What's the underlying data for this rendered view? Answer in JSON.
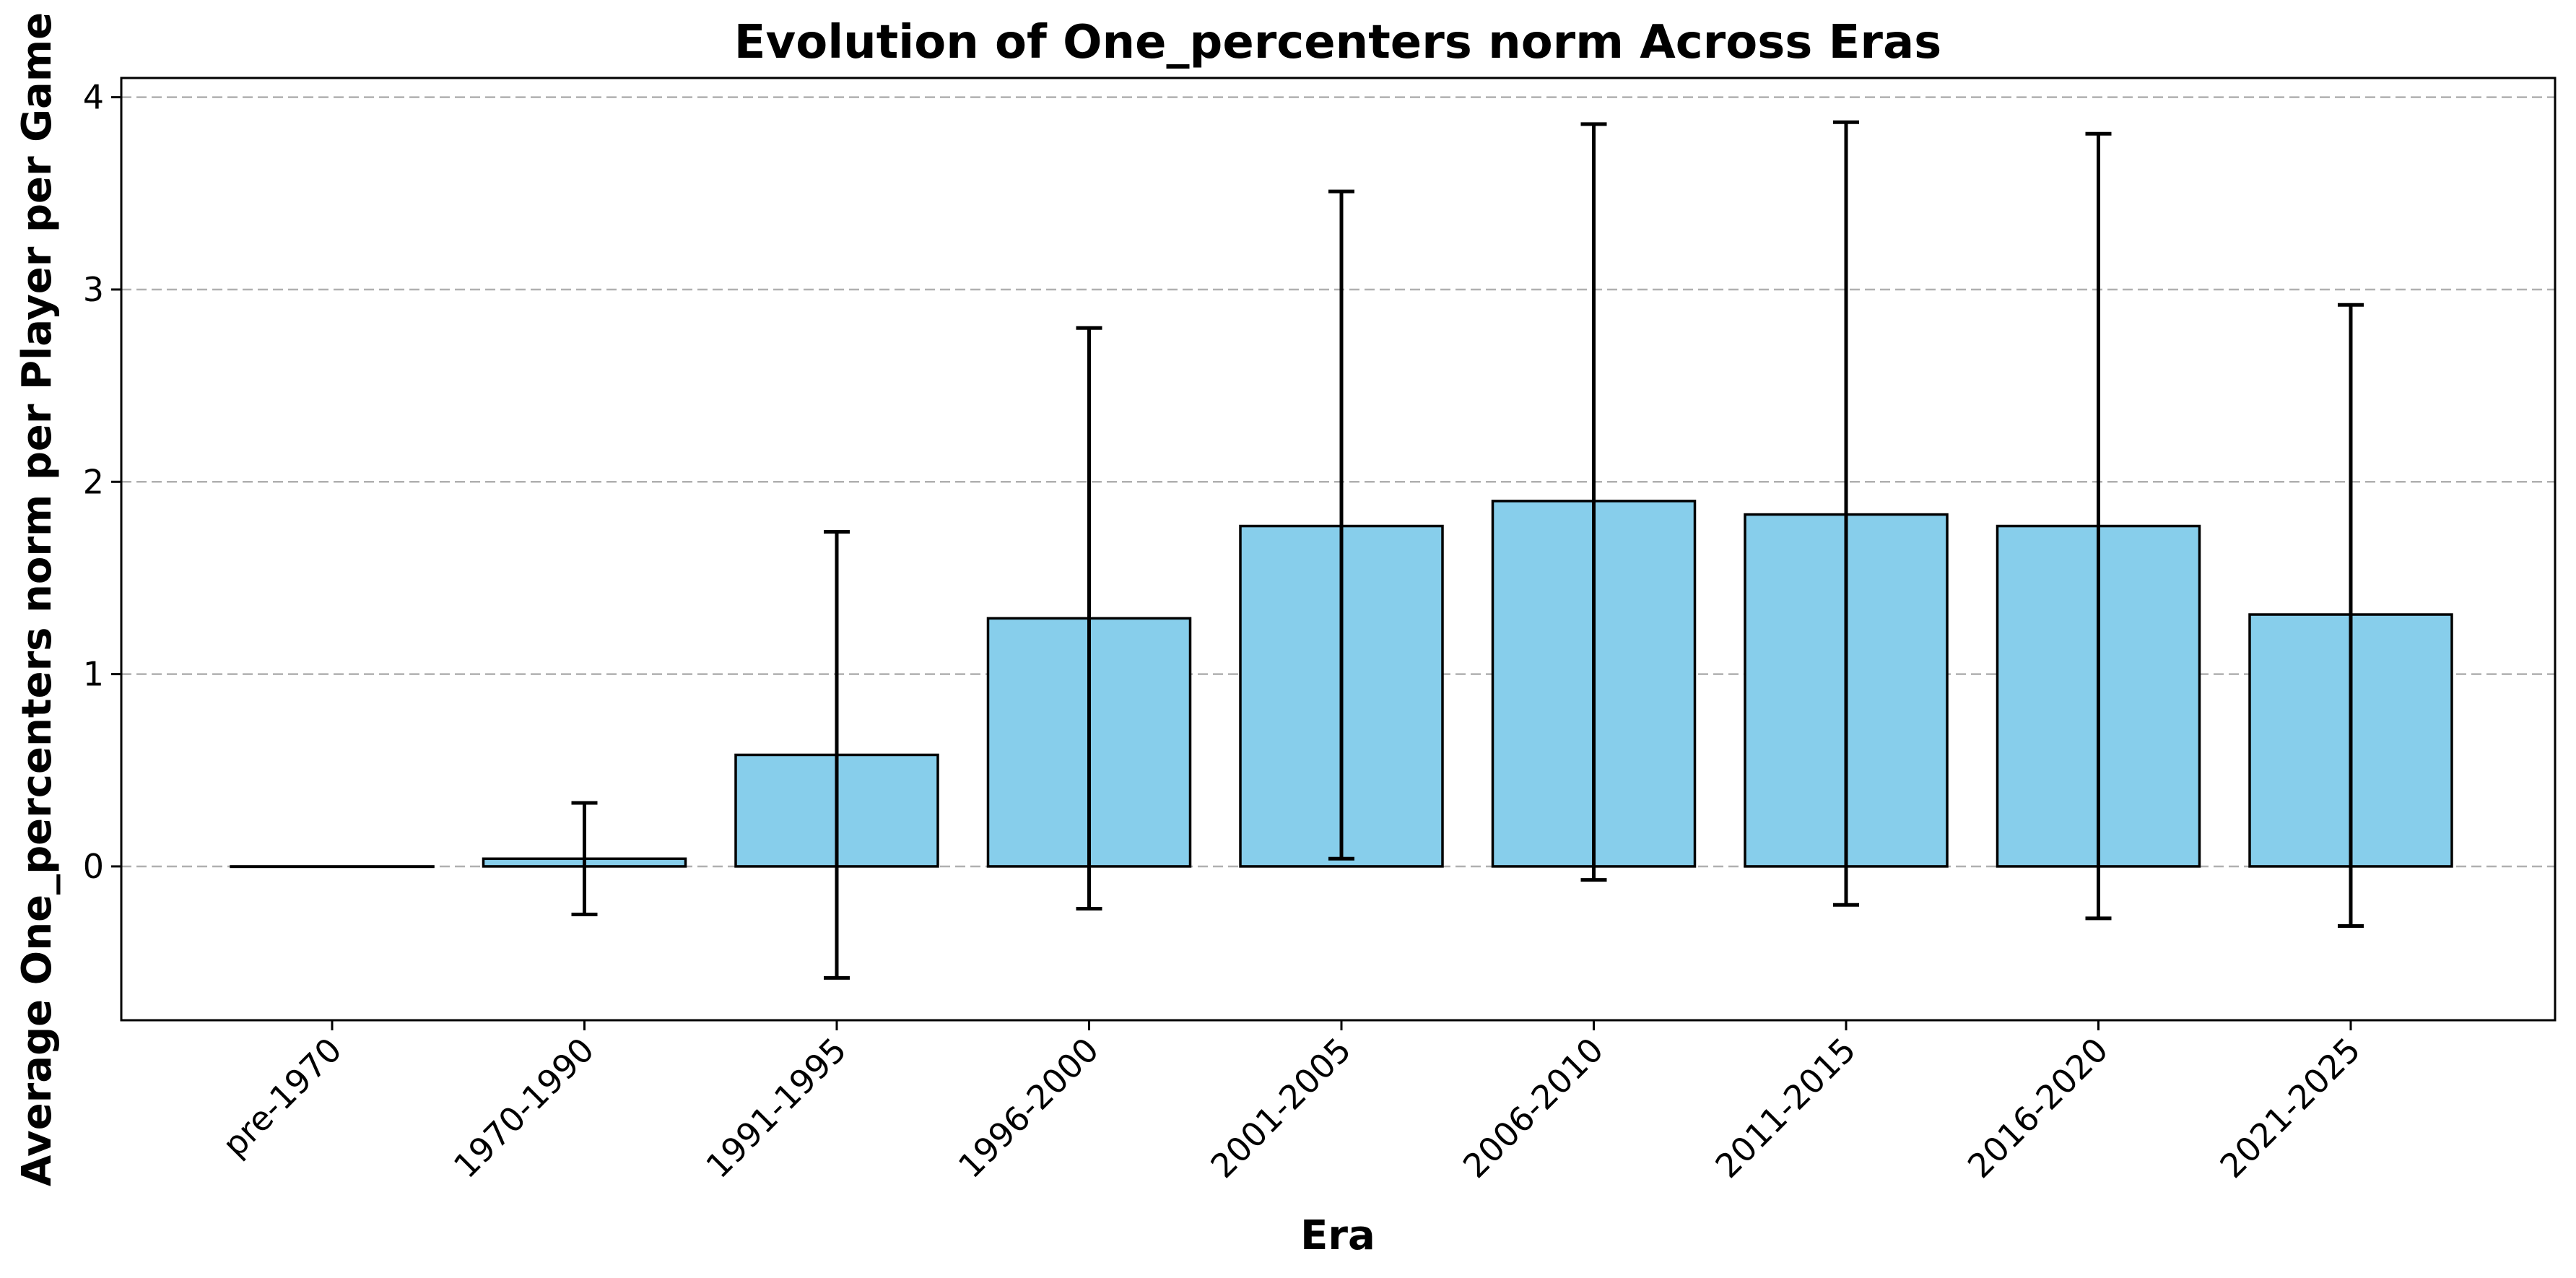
{
  "chart_data": {
    "type": "bar",
    "title": "Evolution of One_percenters norm Across Eras",
    "xlabel": "Era",
    "ylabel": "Average One_percenters norm per Player per Game",
    "categories": [
      "pre-1970",
      "1970-1990",
      "1991-1995",
      "1996-2000",
      "2001-2005",
      "2006-2010",
      "2011-2015",
      "2016-2020",
      "2021-2025"
    ],
    "values": [
      0.0,
      0.04,
      0.58,
      1.29,
      1.77,
      1.9,
      1.83,
      1.77,
      1.31
    ],
    "error_low": [
      0.0,
      -0.25,
      -0.58,
      -0.22,
      0.04,
      -0.07,
      -0.2,
      -0.27,
      -0.31
    ],
    "error_high": [
      0.0,
      0.33,
      1.74,
      2.8,
      3.51,
      3.86,
      3.87,
      3.81,
      2.92
    ],
    "ylim": [
      -0.8,
      4.1
    ],
    "yticks": [
      0,
      1,
      2,
      3,
      4
    ],
    "grid": "y",
    "bar_color": "#87CEEB",
    "edge_color": "#000000"
  }
}
